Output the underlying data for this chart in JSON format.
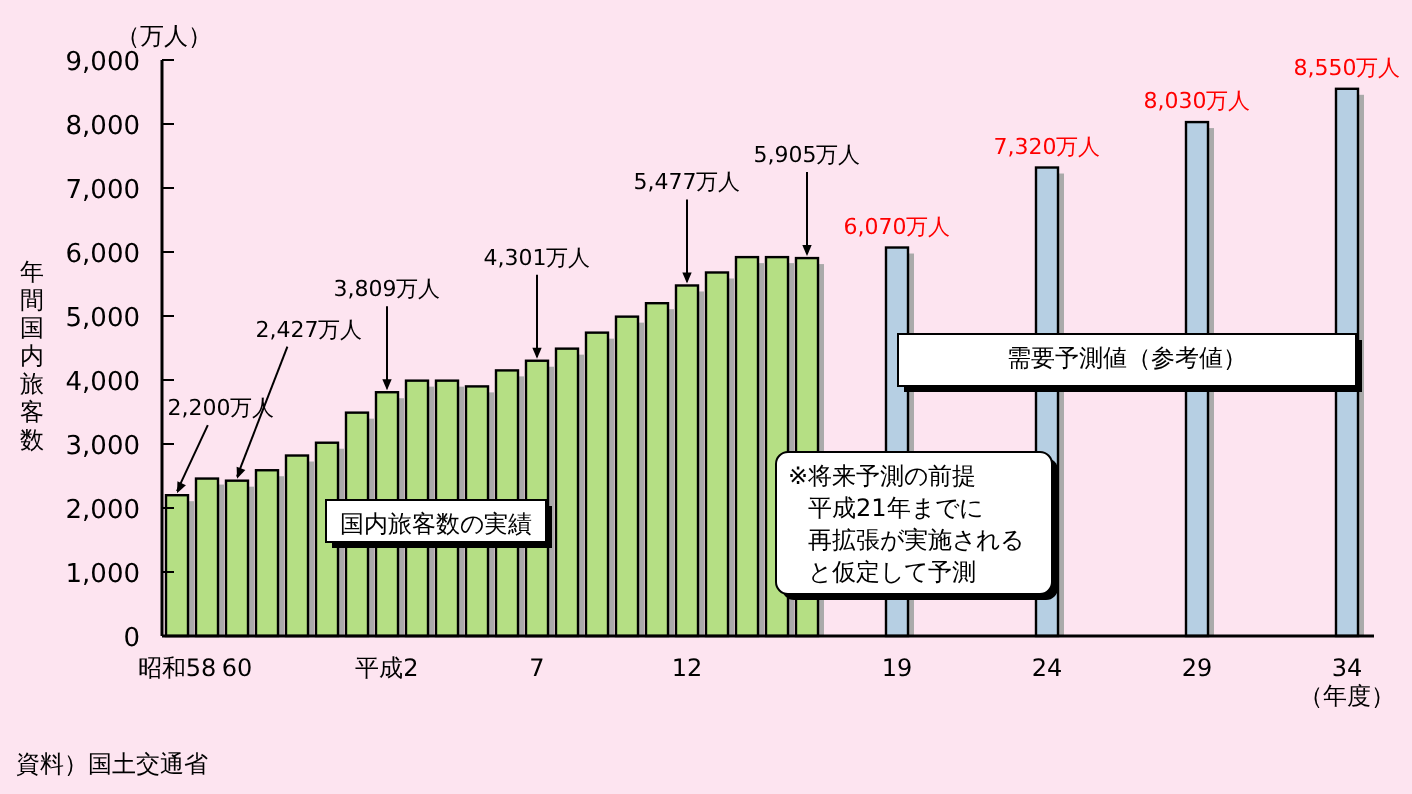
{
  "chart_data": {
    "type": "bar",
    "categories": [
      "昭和58",
      null,
      "60",
      null,
      null,
      null,
      null,
      "平成2",
      null,
      null,
      null,
      null,
      "7",
      null,
      null,
      null,
      null,
      "12",
      null,
      null,
      null,
      null,
      null,
      null,
      "19",
      null,
      null,
      null,
      null,
      "24",
      null,
      null,
      null,
      null,
      "29",
      null,
      null,
      null,
      null,
      "34"
    ],
    "series": [
      {
        "color": "#b5df84",
        "values": [
          2200,
          2460,
          2427,
          2590,
          2820,
          3020,
          3490,
          3809,
          3990,
          3990,
          3900,
          4150,
          4301,
          4490,
          4740,
          4990,
          5200,
          5477,
          5680,
          5920,
          5920,
          5905,
          null,
          null,
          null,
          null,
          null,
          null,
          null,
          null,
          null,
          null,
          null,
          null,
          null,
          null,
          null,
          null,
          null,
          null
        ],
        "value_labels": [
          "2,200万人",
          null,
          "2,427万人",
          null,
          null,
          null,
          null,
          "3,809万人",
          null,
          null,
          null,
          null,
          "4,301万人",
          null,
          null,
          null,
          null,
          "5,477万人",
          null,
          null,
          null,
          "5,905万人",
          null,
          null,
          null,
          null,
          null,
          null,
          null,
          null,
          null,
          null,
          null,
          null,
          null,
          null,
          null,
          null,
          null,
          null
        ]
      },
      {
        "color": "#b6cfe3",
        "values": [
          null,
          null,
          null,
          null,
          null,
          null,
          null,
          null,
          null,
          null,
          null,
          null,
          null,
          null,
          null,
          null,
          null,
          null,
          null,
          null,
          null,
          null,
          null,
          null,
          6070,
          null,
          null,
          null,
          null,
          7320,
          null,
          null,
          null,
          null,
          8030,
          null,
          null,
          null,
          null,
          8550
        ],
        "value_labels": [
          null,
          null,
          null,
          null,
          null,
          null,
          null,
          null,
          null,
          null,
          null,
          null,
          null,
          null,
          null,
          null,
          null,
          null,
          null,
          null,
          null,
          null,
          null,
          null,
          "6,070万人",
          null,
          null,
          null,
          null,
          "7,320万人",
          null,
          null,
          null,
          null,
          "8,030万人",
          null,
          null,
          null,
          null,
          "8,550万人"
        ]
      }
    ],
    "ylabel": "年間国内旅客数",
    "xlabel": "（年度）",
    "ylim": [
      0,
      9000
    ],
    "yticks": [
      {
        "value": 0,
        "label": "0"
      },
      {
        "value": 1000,
        "label": "1,000"
      },
      {
        "value": 2000,
        "label": "2,000"
      },
      {
        "value": 3000,
        "label": "3,000"
      },
      {
        "value": 4000,
        "label": "4,000"
      },
      {
        "value": 5000,
        "label": "5,000"
      },
      {
        "value": 6000,
        "label": "6,000"
      },
      {
        "value": 7000,
        "label": "7,000"
      },
      {
        "value": 8000,
        "label": "8,000"
      },
      {
        "value": 9000,
        "label": "9,000"
      }
    ],
    "grid": false,
    "annotations": [
      "（万人）",
      "国内旅客数の実績",
      "需要予測値（参考値）",
      "※将来予測の前提平成21年までに再拡張が実施されると仮定して予測",
      "資料）国土交通省"
    ]
  }
}
